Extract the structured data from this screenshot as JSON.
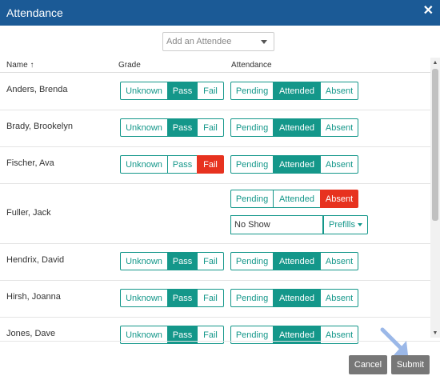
{
  "window": {
    "title": "Attendance",
    "close_symbol": "✕"
  },
  "add_attendee": {
    "placeholder": "Add an Attendee"
  },
  "columns": {
    "name": "Name",
    "sort_arrow": "↑",
    "grade": "Grade",
    "attendance": "Attendance"
  },
  "grade_options": [
    "Unknown",
    "Pass",
    "Fail"
  ],
  "attendance_options": [
    "Pending",
    "Attended",
    "Absent"
  ],
  "rows": [
    {
      "name": "Anders, Brenda",
      "grade": "Pass",
      "attendance": "Attended"
    },
    {
      "name": "Brady, Brookelyn",
      "grade": "Pass",
      "attendance": "Attended"
    },
    {
      "name": "Fischer, Ava",
      "grade": "Fail",
      "attendance": "Attended"
    },
    {
      "name": "Fuller, Jack",
      "grade": "",
      "attendance": "Absent",
      "absence_reason": "No Show",
      "prefills_label": "Prefills"
    },
    {
      "name": "Hendrix, David",
      "grade": "Pass",
      "attendance": "Attended"
    },
    {
      "name": "Hirsh, Joanna",
      "grade": "Pass",
      "attendance": "Attended"
    },
    {
      "name": "Jones, Dave",
      "grade": "Pass",
      "attendance": "Attended"
    }
  ],
  "footer": {
    "cancel": "Cancel",
    "submit": "Submit"
  },
  "colors": {
    "header": "#1b5a96",
    "teal": "#14978a",
    "red": "#e7321f",
    "footer_button": "#777777"
  },
  "icons": {
    "close": "close-icon",
    "dropdown": "caret-down-icon",
    "sort": "sort-asc-icon",
    "pointer": "mouse-pointer-icon"
  }
}
